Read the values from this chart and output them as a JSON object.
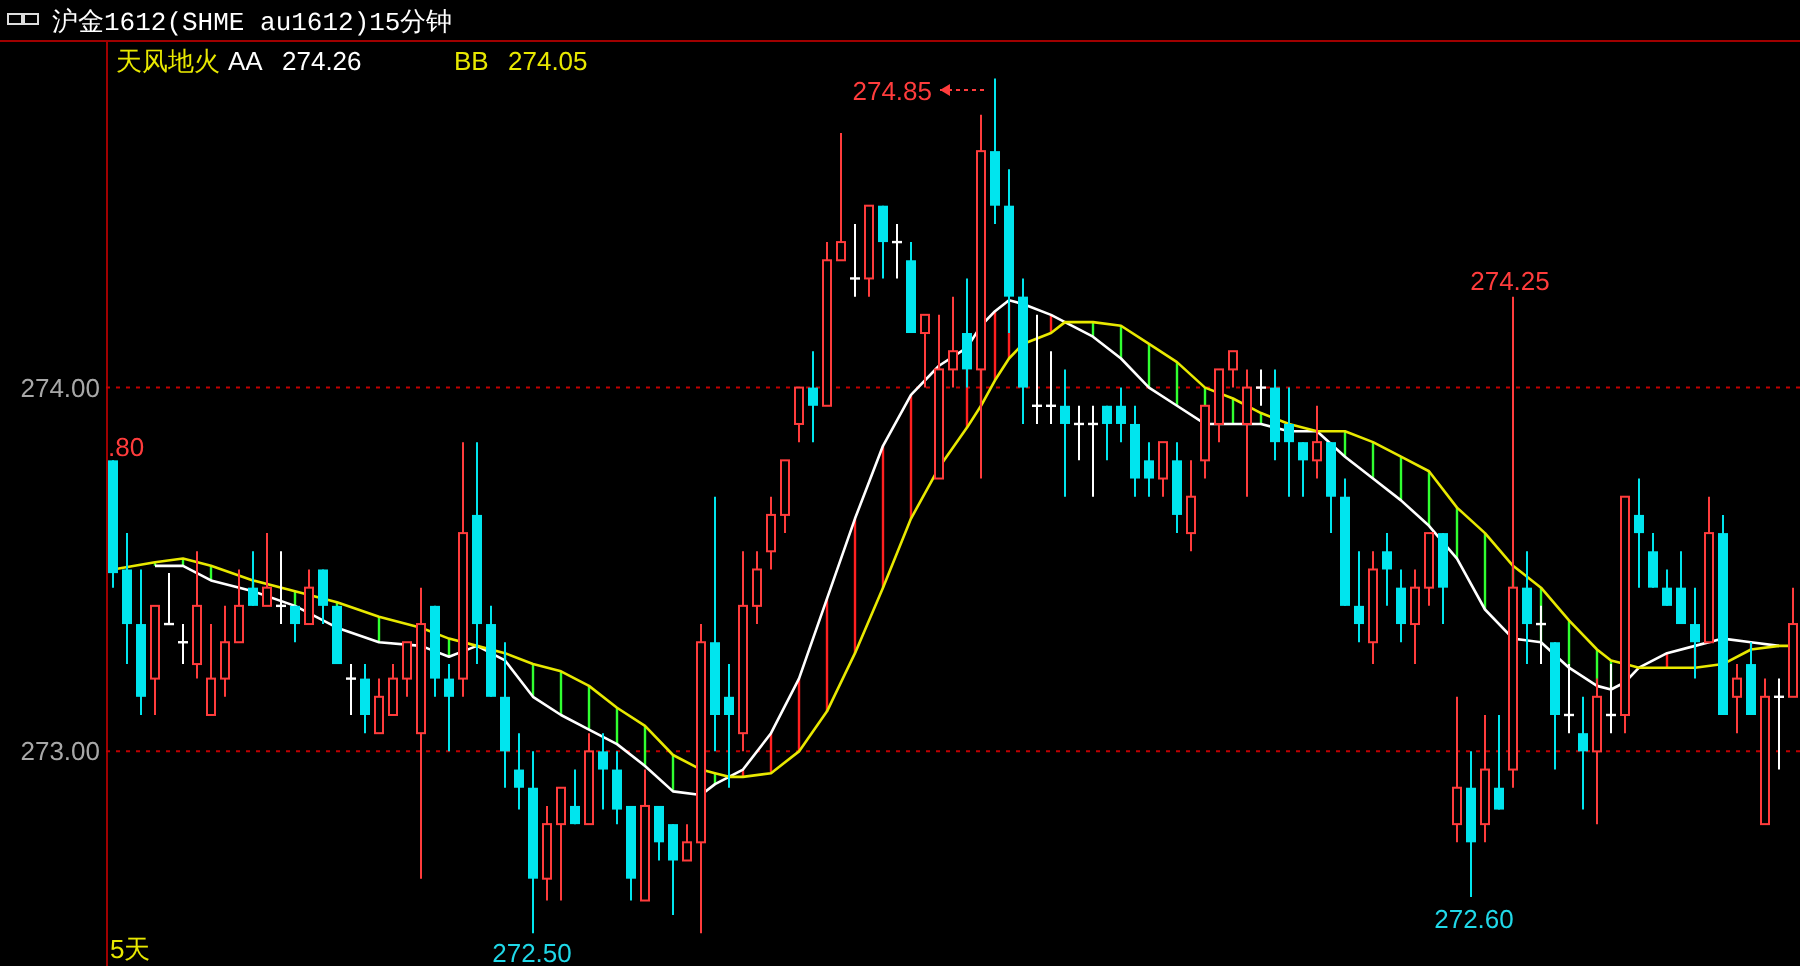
{
  "chart_data": {
    "type": "candlestick",
    "title": "沪金1612(SHME au1612)15分钟",
    "legend_title": "天风地火",
    "legend": "top left",
    "grid": "y",
    "categories": [
      null,
      null,
      null,
      null,
      null,
      null,
      null,
      null,
      null,
      null,
      null,
      null,
      null,
      null,
      null,
      null,
      null,
      null,
      null,
      null,
      null,
      null,
      null,
      null,
      null,
      null,
      null,
      null,
      null,
      null,
      null,
      null,
      null,
      null,
      null,
      null,
      null,
      null,
      null,
      null,
      null,
      null,
      null,
      null,
      null,
      null,
      null,
      null,
      null,
      null,
      null,
      null,
      null,
      null,
      null,
      null,
      null,
      null,
      null,
      null,
      null,
      null,
      null,
      null,
      null,
      null,
      null,
      null,
      null,
      null,
      null,
      null,
      null,
      null,
      null,
      null,
      null,
      null,
      null,
      null,
      null,
      null,
      null,
      null,
      null,
      null,
      null,
      null,
      null,
      null,
      null,
      null,
      null,
      null,
      null,
      null,
      null,
      null,
      null,
      null,
      null,
      null,
      null,
      null,
      null,
      null,
      null,
      null,
      null,
      null,
      null,
      null,
      null,
      null,
      null,
      null,
      null,
      null,
      null,
      null,
      null
    ],
    "ohlc": [
      [
        273.8,
        273.8,
        273.45,
        273.49
      ],
      [
        273.5,
        273.6,
        273.24,
        273.35
      ],
      [
        273.35,
        273.5,
        273.1,
        273.15
      ],
      [
        273.2,
        273.4,
        273.1,
        273.4
      ],
      [
        273.35,
        273.49,
        273.35,
        273.35
      ],
      [
        273.3,
        273.35,
        273.24,
        273.3
      ],
      [
        273.24,
        273.55,
        273.2,
        273.4
      ],
      [
        273.1,
        273.35,
        273.1,
        273.2
      ],
      [
        273.2,
        273.4,
        273.15,
        273.3
      ],
      [
        273.3,
        273.5,
        273.3,
        273.4
      ],
      [
        273.45,
        273.55,
        273.4,
        273.4
      ],
      [
        273.4,
        273.6,
        273.4,
        273.45
      ],
      [
        273.4,
        273.55,
        273.35,
        273.4
      ],
      [
        273.4,
        273.4,
        273.3,
        273.35
      ],
      [
        273.35,
        273.5,
        273.35,
        273.45
      ],
      [
        273.5,
        273.5,
        273.35,
        273.4
      ],
      [
        273.4,
        273.4,
        273.24,
        273.24
      ],
      [
        273.2,
        273.24,
        273.1,
        273.2
      ],
      [
        273.2,
        273.24,
        273.05,
        273.1
      ],
      [
        273.05,
        273.2,
        273.05,
        273.15
      ],
      [
        273.1,
        273.24,
        273.1,
        273.2
      ],
      [
        273.2,
        273.3,
        273.15,
        273.3
      ],
      [
        273.05,
        273.45,
        272.65,
        273.35
      ],
      [
        273.4,
        273.4,
        273.15,
        273.2
      ],
      [
        273.2,
        273.24,
        273.0,
        273.15
      ],
      [
        273.2,
        273.85,
        273.15,
        273.6
      ],
      [
        273.65,
        273.85,
        273.24,
        273.35
      ],
      [
        273.35,
        273.4,
        273.15,
        273.15
      ],
      [
        273.15,
        273.3,
        272.9,
        273.0
      ],
      [
        272.95,
        273.05,
        272.84,
        272.9
      ],
      [
        272.9,
        273.0,
        272.5,
        272.65
      ],
      [
        272.65,
        272.85,
        272.59,
        272.8
      ],
      [
        272.8,
        272.9,
        272.59,
        272.9
      ],
      [
        272.85,
        272.95,
        272.8,
        272.8
      ],
      [
        272.8,
        273.05,
        272.8,
        273.0
      ],
      [
        273.0,
        273.05,
        272.84,
        272.95
      ],
      [
        272.95,
        273.0,
        272.8,
        272.84
      ],
      [
        272.85,
        272.85,
        272.59,
        272.65
      ],
      [
        272.59,
        272.95,
        272.59,
        272.85
      ],
      [
        272.85,
        272.85,
        272.7,
        272.75
      ],
      [
        272.8,
        272.8,
        272.55,
        272.7
      ],
      [
        272.7,
        272.8,
        272.7,
        272.75
      ],
      [
        272.75,
        273.35,
        272.5,
        273.3
      ],
      [
        273.3,
        273.7,
        273.0,
        273.1
      ],
      [
        273.15,
        273.24,
        272.9,
        273.1
      ],
      [
        273.05,
        273.55,
        273.0,
        273.4
      ],
      [
        273.4,
        273.55,
        273.35,
        273.5
      ],
      [
        273.55,
        273.7,
        273.5,
        273.65
      ],
      [
        273.65,
        273.8,
        273.6,
        273.8
      ],
      [
        273.9,
        274.0,
        273.85,
        274.0
      ],
      [
        274.0,
        274.1,
        273.85,
        273.95
      ],
      [
        273.95,
        274.4,
        273.95,
        274.35
      ],
      [
        274.35,
        274.7,
        274.35,
        274.4
      ],
      [
        274.3,
        274.45,
        274.25,
        274.3
      ],
      [
        274.3,
        274.5,
        274.25,
        274.5
      ],
      [
        274.5,
        274.5,
        274.3,
        274.4
      ],
      [
        274.4,
        274.45,
        274.3,
        274.4
      ],
      [
        274.35,
        274.4,
        274.15,
        274.15
      ],
      [
        274.15,
        274.2,
        274.0,
        274.2
      ],
      [
        273.75,
        274.2,
        273.75,
        274.05
      ],
      [
        274.05,
        274.25,
        274.0,
        274.1
      ],
      [
        274.15,
        274.3,
        274.0,
        274.05
      ],
      [
        274.05,
        274.75,
        273.75,
        274.65
      ],
      [
        274.65,
        274.85,
        274.45,
        274.5
      ],
      [
        274.5,
        274.6,
        274.15,
        274.25
      ],
      [
        274.25,
        274.3,
        273.9,
        274.0
      ],
      [
        273.95,
        274.2,
        273.9,
        273.95
      ],
      [
        273.95,
        274.1,
        273.9,
        273.95
      ],
      [
        273.95,
        274.05,
        273.7,
        273.9
      ],
      [
        273.9,
        273.95,
        273.8,
        273.9
      ],
      [
        273.9,
        273.95,
        273.7,
        273.9
      ],
      [
        273.95,
        273.95,
        273.8,
        273.9
      ],
      [
        273.95,
        274.0,
        273.85,
        273.9
      ],
      [
        273.9,
        273.95,
        273.7,
        273.75
      ],
      [
        273.8,
        273.85,
        273.7,
        273.75
      ],
      [
        273.75,
        273.85,
        273.7,
        273.85
      ],
      [
        273.8,
        273.85,
        273.6,
        273.65
      ],
      [
        273.6,
        273.8,
        273.55,
        273.7
      ],
      [
        273.8,
        273.95,
        273.75,
        273.95
      ],
      [
        273.9,
        274.05,
        273.85,
        274.05
      ],
      [
        274.05,
        274.1,
        274.0,
        274.1
      ],
      [
        273.9,
        274.05,
        273.7,
        274.0
      ],
      [
        274.0,
        274.05,
        273.95,
        274.0
      ],
      [
        274.0,
        274.05,
        273.8,
        273.85
      ],
      [
        273.9,
        274.0,
        273.7,
        273.85
      ],
      [
        273.85,
        273.85,
        273.7,
        273.8
      ],
      [
        273.8,
        273.95,
        273.75,
        273.85
      ],
      [
        273.85,
        273.85,
        273.6,
        273.7
      ],
      [
        273.7,
        273.75,
        273.4,
        273.4
      ],
      [
        273.4,
        273.55,
        273.3,
        273.35
      ],
      [
        273.3,
        273.55,
        273.24,
        273.5
      ],
      [
        273.55,
        273.6,
        273.4,
        273.5
      ],
      [
        273.45,
        273.5,
        273.3,
        273.35
      ],
      [
        273.35,
        273.5,
        273.24,
        273.45
      ],
      [
        273.45,
        273.6,
        273.4,
        273.6
      ],
      [
        273.6,
        273.6,
        273.35,
        273.45
      ],
      [
        272.8,
        273.15,
        272.75,
        272.9
      ],
      [
        272.9,
        273.0,
        272.6,
        272.75
      ],
      [
        272.8,
        273.1,
        272.75,
        272.95
      ],
      [
        272.9,
        273.1,
        272.84,
        272.84
      ],
      [
        272.95,
        274.25,
        272.9,
        273.45
      ],
      [
        273.45,
        273.55,
        273.24,
        273.35
      ],
      [
        273.35,
        273.4,
        273.24,
        273.35
      ],
      [
        273.3,
        273.3,
        272.95,
        273.1
      ],
      [
        273.1,
        273.24,
        273.05,
        273.1
      ],
      [
        273.05,
        273.15,
        272.84,
        273.0
      ],
      [
        273.0,
        273.2,
        272.8,
        273.15
      ],
      [
        273.1,
        273.24,
        273.05,
        273.1
      ],
      [
        273.1,
        273.7,
        273.05,
        273.7
      ],
      [
        273.65,
        273.75,
        273.45,
        273.6
      ],
      [
        273.55,
        273.6,
        273.45,
        273.45
      ],
      [
        273.45,
        273.5,
        273.4,
        273.4
      ],
      [
        273.45,
        273.55,
        273.35,
        273.35
      ],
      [
        273.35,
        273.45,
        273.2,
        273.3
      ],
      [
        273.3,
        273.7,
        273.3,
        273.6
      ],
      [
        273.6,
        273.65,
        273.1,
        273.1
      ],
      [
        273.15,
        273.24,
        273.05,
        273.2
      ],
      [
        273.24,
        273.3,
        273.1,
        273.1
      ],
      [
        272.8,
        273.2,
        272.8,
        273.15
      ],
      [
        273.15,
        273.2,
        272.95,
        273.15
      ],
      [
        273.15,
        273.45,
        273.15,
        273.35
      ]
    ],
    "colors": [
      "#00e5ee",
      "#00e5ee",
      "#00e5ee",
      "#ff3c3c",
      "#ffffff",
      "#ffffff",
      "#ff3c3c",
      "#ff3c3c",
      "#ff3c3c",
      "#ff3c3c",
      "#00e5ee",
      "#ff3c3c",
      "#ffffff",
      "#00e5ee",
      "#ff3c3c",
      "#00e5ee",
      "#00e5ee",
      "#ffffff",
      "#00e5ee",
      "#ff3c3c",
      "#ff3c3c",
      "#ff3c3c",
      "#ff3c3c",
      "#00e5ee",
      "#00e5ee",
      "#ff3c3c",
      "#00e5ee",
      "#00e5ee",
      "#00e5ee",
      "#00e5ee",
      "#00e5ee",
      "#ff3c3c",
      "#ff3c3c",
      "#00e5ee",
      "#ff3c3c",
      "#00e5ee",
      "#00e5ee",
      "#00e5ee",
      "#ff3c3c",
      "#00e5ee",
      "#00e5ee",
      "#ff3c3c",
      "#ff3c3c",
      "#00e5ee",
      "#00e5ee",
      "#ff3c3c",
      "#ff3c3c",
      "#ff3c3c",
      "#ff3c3c",
      "#ff3c3c",
      "#00e5ee",
      "#ff3c3c",
      "#ff3c3c",
      "#ffffff",
      "#ff3c3c",
      "#00e5ee",
      "#ffffff",
      "#00e5ee",
      "#ff3c3c",
      "#ff3c3c",
      "#ff3c3c",
      "#00e5ee",
      "#ff3c3c",
      "#00e5ee",
      "#00e5ee",
      "#00e5ee",
      "#ffffff",
      "#ffffff",
      "#00e5ee",
      "#ffffff",
      "#ffffff",
      "#00e5ee",
      "#00e5ee",
      "#00e5ee",
      "#00e5ee",
      "#ff3c3c",
      "#00e5ee",
      "#ff3c3c",
      "#ff3c3c",
      "#ff3c3c",
      "#ff3c3c",
      "#ff3c3c",
      "#ffffff",
      "#00e5ee",
      "#00e5ee",
      "#00e5ee",
      "#ff3c3c",
      "#00e5ee",
      "#00e5ee",
      "#00e5ee",
      "#ff3c3c",
      "#00e5ee",
      "#00e5ee",
      "#ff3c3c",
      "#ff3c3c",
      "#00e5ee",
      "#ff3c3c",
      "#00e5ee",
      "#ff3c3c",
      "#00e5ee",
      "#ff3c3c",
      "#00e5ee",
      "#ffffff",
      "#00e5ee",
      "#ffffff",
      "#00e5ee",
      "#ff3c3c",
      "#ffffff",
      "#ff3c3c",
      "#00e5ee",
      "#00e5ee",
      "#00e5ee",
      "#00e5ee",
      "#00e5ee",
      "#ff3c3c",
      "#00e5ee",
      "#ff3c3c",
      "#00e5ee",
      "#ff3c3c",
      "#ffffff",
      "#ff3c3c"
    ],
    "series": [
      {
        "name": "AA",
        "type": "line",
        "color": "#ffffff",
        "values": [
          null,
          null,
          null,
          273.51,
          null,
          273.51,
          null,
          273.47,
          null,
          null,
          273.44,
          null,
          null,
          273.4,
          null,
          null,
          273.34,
          null,
          null,
          273.3,
          null,
          null,
          273.29,
          null,
          273.26,
          null,
          273.29,
          null,
          273.25,
          null,
          273.15,
          null,
          273.1,
          null,
          273.06,
          null,
          273.02,
          null,
          272.96,
          null,
          272.89,
          null,
          272.88,
          272.91,
          272.93,
          272.95,
          null,
          273.05,
          null,
          273.2,
          null,
          273.42,
          null,
          273.64,
          null,
          273.84,
          null,
          273.98,
          null,
          274.06,
          null,
          274.11,
          274.17,
          274.21,
          274.24,
          274.23,
          null,
          274.2,
          274.18,
          null,
          274.14,
          null,
          274.08,
          null,
          274.0,
          null,
          273.95,
          null,
          273.9,
          null,
          273.9,
          null,
          273.9,
          null,
          273.88,
          null,
          273.88,
          null,
          273.81,
          null,
          273.75,
          null,
          273.69,
          null,
          273.62,
          null,
          273.53,
          null,
          273.39,
          null,
          273.31,
          null,
          273.3,
          null,
          273.23,
          null,
          273.18,
          273.17,
          273.19,
          273.23,
          null,
          273.27,
          null,
          273.29,
          null,
          273.31,
          null,
          273.3,
          null,
          273.29,
          null
        ]
      },
      {
        "name": "BB",
        "type": "line",
        "color": "#e8e800",
        "values": [
          273.5,
          null,
          null,
          273.52,
          null,
          273.53,
          null,
          273.51,
          null,
          null,
          273.47,
          null,
          null,
          273.44,
          null,
          null,
          273.41,
          null,
          null,
          273.37,
          null,
          null,
          273.34,
          null,
          273.31,
          null,
          273.29,
          null,
          273.27,
          null,
          273.24,
          null,
          273.22,
          null,
          273.18,
          null,
          273.12,
          null,
          273.07,
          null,
          272.99,
          null,
          272.95,
          272.94,
          272.93,
          272.93,
          null,
          272.94,
          null,
          273.0,
          null,
          273.11,
          null,
          273.27,
          null,
          273.45,
          null,
          273.64,
          null,
          273.78,
          null,
          273.89,
          273.95,
          274.02,
          274.08,
          274.12,
          null,
          274.15,
          274.18,
          null,
          274.18,
          null,
          274.17,
          null,
          274.12,
          null,
          274.07,
          null,
          274.0,
          null,
          273.97,
          null,
          273.93,
          null,
          273.9,
          null,
          273.88,
          null,
          273.88,
          null,
          273.85,
          null,
          273.81,
          null,
          273.77,
          null,
          273.67,
          null,
          273.6,
          null,
          273.51,
          null,
          273.45,
          null,
          273.36,
          null,
          273.28,
          273.25,
          273.24,
          273.23,
          null,
          273.23,
          null,
          273.23,
          null,
          273.24,
          null,
          273.28,
          null,
          273.29,
          273.29
        ]
      }
    ],
    "ylim": [
      272.41,
      274.95
    ],
    "yticks": [
      {
        "value": 274,
        "label": "274.00"
      },
      {
        "value": 273,
        "label": "273.00"
      }
    ],
    "annotations": [
      ".80",
      "274.85",
      "274.25",
      "272.50",
      "272.60",
      "274.26",
      "274.05",
      "5天"
    ]
  }
}
